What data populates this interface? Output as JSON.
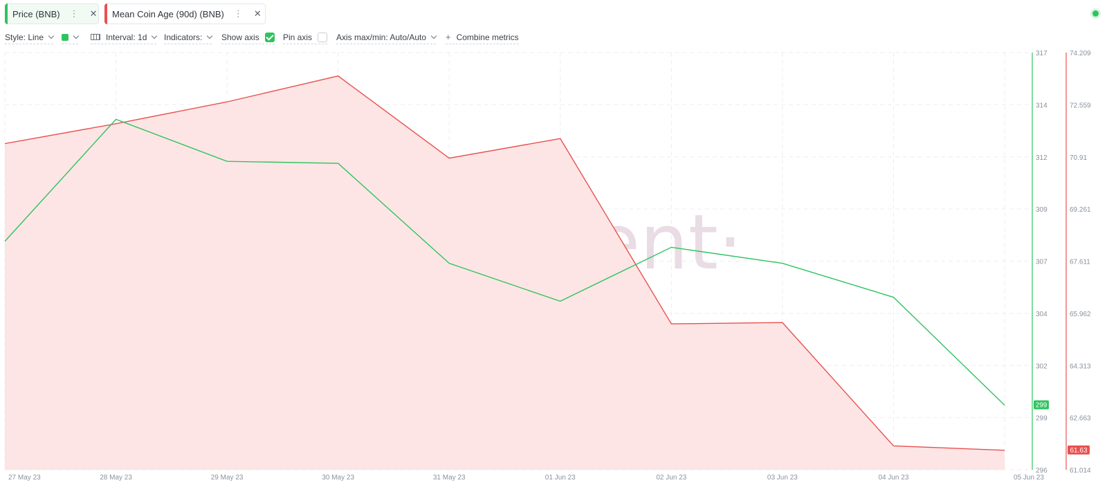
{
  "tabs": [
    {
      "label": "Price (BNB)",
      "color": "#2ec35f"
    },
    {
      "label": "Mean Coin Age (90d) (BNB)",
      "color": "#e8504f"
    }
  ],
  "toolbar": {
    "style_label": "Style: Line",
    "interval_label": "Interval: 1d",
    "indicators_label": "Indicators:",
    "show_axis_label": "Show axis",
    "show_axis_checked": true,
    "pin_axis_label": "Pin axis",
    "pin_axis_checked": false,
    "axis_maxmin_label": "Axis max/min: Auto/Auto",
    "combine_label": "Combine metrics"
  },
  "watermark": "·santiment·",
  "chart_data": {
    "type": "line",
    "x": [
      "27 May 23",
      "28 May 23",
      "29 May 23",
      "30 May 23",
      "31 May 23",
      "01 Jun 23",
      "02 Jun 23",
      "03 Jun 23",
      "04 Jun 23",
      "05 Jun 23"
    ],
    "series": [
      {
        "name": "Price (BNB)",
        "color": "#2ec35f",
        "axis": "left-of-right",
        "values": [
          307.6,
          313.7,
          311.6,
          311.5,
          306.5,
          304.6,
          307.3,
          306.5,
          304.8,
          299.4
        ],
        "last_label": "299"
      },
      {
        "name": "Mean Coin Age (90d) (BNB)",
        "color": "#e8504f",
        "fill": "#fde5e5",
        "axis": "right",
        "values": [
          71.33,
          71.96,
          72.65,
          73.47,
          70.87,
          71.49,
          65.63,
          65.67,
          61.77,
          61.63
        ],
        "last_label": "61.63"
      }
    ],
    "axes": {
      "price": {
        "ticks": [
          "317",
          "314",
          "312",
          "309",
          "307",
          "304",
          "302",
          "299",
          "296"
        ],
        "range": [
          296.17,
          317.04
        ],
        "color": "#2ec35f"
      },
      "coin_age": {
        "ticks": [
          "74.209",
          "72.559",
          "70.91",
          "69.261",
          "67.611",
          "65.962",
          "64.313",
          "62.663",
          "61.014"
        ],
        "range": [
          61.014,
          74.209
        ],
        "color": "#e8504f"
      }
    },
    "grid": true
  }
}
